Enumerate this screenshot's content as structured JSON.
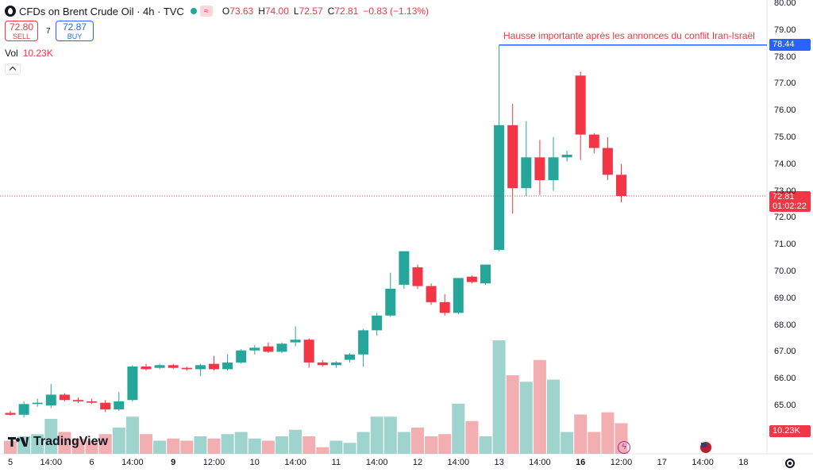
{
  "header": {
    "symbol": "CFDs on Brent Crude Oil · 4h · TVC",
    "ohlc": {
      "o_label": "O",
      "o": "73.63",
      "h_label": "H",
      "h": "74.00",
      "l_label": "L",
      "l": "72.57",
      "c_label": "C",
      "c": "72.81",
      "chg": "−0.83 (−1.13%)"
    },
    "sell": {
      "price": "72.80",
      "label": "SELL"
    },
    "buy": {
      "price": "72.87",
      "label": "BUY"
    },
    "spread": "7",
    "volume_label": "Vol",
    "volume_value": "10.23K"
  },
  "annotation": {
    "text": "Hausse importante après les annonces du conflit Iran-Israël",
    "price": 78.44
  },
  "current_price": {
    "price": "72.81",
    "countdown": "01:02:22"
  },
  "volume_tag": "10.23K",
  "branding": {
    "logo_text": "TradingView"
  },
  "colors": {
    "up": "#26a69a",
    "down": "#f23645",
    "annotation": "#2962ff",
    "up_volume": "#9fd3ce",
    "down_volume": "#f2aeb0"
  },
  "icons": {
    "symbol": "brent-oil-icon",
    "settings": "gear-icon",
    "event_a": "lightning-event-icon",
    "event_b": "us-flag-event-icon"
  },
  "chart_data": {
    "type": "candlestick",
    "y_ticks": [
      "80.00",
      "79.00",
      "78.00",
      "77.00",
      "76.00",
      "75.00",
      "74.00",
      "73.00",
      "72.00",
      "71.00",
      "70.00",
      "69.00",
      "68.00",
      "67.00",
      "66.00",
      "65.00"
    ],
    "x_ticks": [
      {
        "label": "5",
        "bar": 0,
        "bold": false
      },
      {
        "label": "14:00",
        "bar": 3,
        "bold": false
      },
      {
        "label": "6",
        "bar": 6,
        "bold": false
      },
      {
        "label": "14:00",
        "bar": 9,
        "bold": false
      },
      {
        "label": "9",
        "bar": 12,
        "bold": true
      },
      {
        "label": "12:00",
        "bar": 15,
        "bold": false
      },
      {
        "label": "10",
        "bar": 18,
        "bold": false
      },
      {
        "label": "14:00",
        "bar": 21,
        "bold": false
      },
      {
        "label": "11",
        "bar": 24,
        "bold": false
      },
      {
        "label": "14:00",
        "bar": 27,
        "bold": false
      },
      {
        "label": "12",
        "bar": 30,
        "bold": false
      },
      {
        "label": "14:00",
        "bar": 33,
        "bold": false
      },
      {
        "label": "13",
        "bar": 36,
        "bold": false
      },
      {
        "label": "14:00",
        "bar": 39,
        "bold": false
      },
      {
        "label": "16",
        "bar": 42,
        "bold": true
      },
      {
        "label": "12:00",
        "bar": 45,
        "bold": false
      },
      {
        "label": "17",
        "bar": 48,
        "bold": false
      },
      {
        "label": "14:00",
        "bar": 51,
        "bold": false
      },
      {
        "label": "18",
        "bar": 54,
        "bold": false
      }
    ],
    "candles": [
      {
        "o": 64.72,
        "h": 64.8,
        "l": 64.62,
        "c": 64.65,
        "v": 0.6
      },
      {
        "o": 64.65,
        "h": 65.15,
        "l": 64.55,
        "c": 65.05,
        "v": 0.8
      },
      {
        "o": 65.05,
        "h": 65.25,
        "l": 64.95,
        "c": 65.1,
        "v": 0.9
      },
      {
        "o": 65.0,
        "h": 65.8,
        "l": 64.9,
        "c": 65.4,
        "v": 1.6
      },
      {
        "o": 65.4,
        "h": 65.45,
        "l": 65.15,
        "c": 65.2,
        "v": 1.0
      },
      {
        "o": 65.2,
        "h": 65.3,
        "l": 65.1,
        "c": 65.15,
        "v": 0.7
      },
      {
        "o": 65.15,
        "h": 65.25,
        "l": 65.05,
        "c": 65.1,
        "v": 0.6
      },
      {
        "o": 65.1,
        "h": 65.2,
        "l": 64.75,
        "c": 64.85,
        "v": 0.9
      },
      {
        "o": 64.85,
        "h": 65.5,
        "l": 64.8,
        "c": 65.15,
        "v": 1.2
      },
      {
        "o": 65.2,
        "h": 66.5,
        "l": 65.15,
        "c": 66.45,
        "v": 1.7
      },
      {
        "o": 66.45,
        "h": 66.55,
        "l": 66.3,
        "c": 66.35,
        "v": 0.9
      },
      {
        "o": 66.4,
        "h": 66.55,
        "l": 66.35,
        "c": 66.5,
        "v": 0.6
      },
      {
        "o": 66.5,
        "h": 66.55,
        "l": 66.35,
        "c": 66.4,
        "v": 0.7
      },
      {
        "o": 66.4,
        "h": 66.45,
        "l": 66.3,
        "c": 66.35,
        "v": 0.6
      },
      {
        "o": 66.35,
        "h": 66.55,
        "l": 66.1,
        "c": 66.5,
        "v": 0.8
      },
      {
        "o": 66.55,
        "h": 66.85,
        "l": 66.3,
        "c": 66.35,
        "v": 0.7
      },
      {
        "o": 66.35,
        "h": 66.9,
        "l": 66.3,
        "c": 66.6,
        "v": 0.9
      },
      {
        "o": 66.6,
        "h": 67.1,
        "l": 66.55,
        "c": 67.05,
        "v": 1.0
      },
      {
        "o": 67.05,
        "h": 67.25,
        "l": 66.9,
        "c": 67.15,
        "v": 0.7
      },
      {
        "o": 67.2,
        "h": 67.35,
        "l": 66.95,
        "c": 67.0,
        "v": 0.6
      },
      {
        "o": 67.0,
        "h": 67.35,
        "l": 66.95,
        "c": 67.3,
        "v": 0.8
      },
      {
        "o": 67.35,
        "h": 67.95,
        "l": 67.2,
        "c": 67.45,
        "v": 1.1
      },
      {
        "o": 67.45,
        "h": 67.5,
        "l": 66.4,
        "c": 66.6,
        "v": 0.8
      },
      {
        "o": 66.6,
        "h": 66.7,
        "l": 66.45,
        "c": 66.5,
        "v": 0.3
      },
      {
        "o": 66.5,
        "h": 66.65,
        "l": 66.4,
        "c": 66.6,
        "v": 0.6
      },
      {
        "o": 66.7,
        "h": 66.95,
        "l": 66.6,
        "c": 66.9,
        "v": 0.5
      },
      {
        "o": 66.9,
        "h": 67.85,
        "l": 66.45,
        "c": 67.8,
        "v": 1.0
      },
      {
        "o": 67.8,
        "h": 68.45,
        "l": 67.6,
        "c": 68.35,
        "v": 1.7
      },
      {
        "o": 68.35,
        "h": 69.95,
        "l": 68.3,
        "c": 69.35,
        "v": 1.7
      },
      {
        "o": 69.5,
        "h": 70.75,
        "l": 69.35,
        "c": 70.75,
        "v": 1.0
      },
      {
        "o": 70.15,
        "h": 70.25,
        "l": 69.35,
        "c": 69.45,
        "v": 1.2
      },
      {
        "o": 69.45,
        "h": 69.55,
        "l": 68.75,
        "c": 68.85,
        "v": 0.8
      },
      {
        "o": 68.85,
        "h": 69.15,
        "l": 68.35,
        "c": 68.45,
        "v": 0.9
      },
      {
        "o": 68.45,
        "h": 69.75,
        "l": 68.4,
        "c": 69.75,
        "v": 2.3
      },
      {
        "o": 69.8,
        "h": 69.85,
        "l": 69.55,
        "c": 69.6,
        "v": 1.5
      },
      {
        "o": 69.55,
        "h": 70.25,
        "l": 69.5,
        "c": 70.25,
        "v": 0.8
      },
      {
        "o": 70.8,
        "h": 78.44,
        "l": 70.75,
        "c": 75.45,
        "v": 5.2
      },
      {
        "o": 75.45,
        "h": 76.25,
        "l": 72.15,
        "c": 73.1,
        "v": 3.6
      },
      {
        "o": 73.1,
        "h": 75.6,
        "l": 72.8,
        "c": 74.25,
        "v": 3.3
      },
      {
        "o": 74.25,
        "h": 74.9,
        "l": 72.85,
        "c": 73.4,
        "v": 4.3
      },
      {
        "o": 73.4,
        "h": 75.0,
        "l": 73.0,
        "c": 74.25,
        "v": 3.4
      },
      {
        "o": 74.25,
        "h": 74.5,
        "l": 74.1,
        "c": 74.35,
        "v": 1.0
      },
      {
        "o": 77.3,
        "h": 77.45,
        "l": 74.15,
        "c": 75.1,
        "v": 1.8
      },
      {
        "o": 75.1,
        "h": 75.15,
        "l": 74.4,
        "c": 74.6,
        "v": 1.0
      },
      {
        "o": 74.6,
        "h": 75.0,
        "l": 73.4,
        "c": 73.6,
        "v": 1.9
      },
      {
        "o": 73.6,
        "h": 74.0,
        "l": 72.57,
        "c": 72.81,
        "v": 1.4
      }
    ]
  }
}
